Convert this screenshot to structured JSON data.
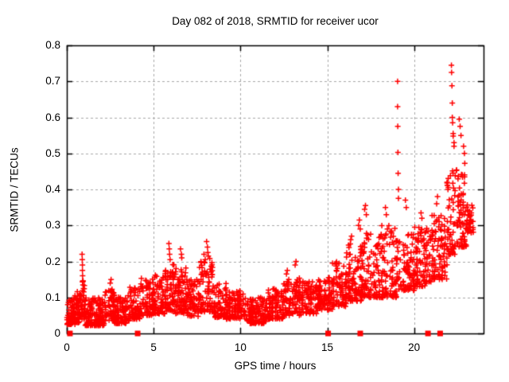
{
  "page": {
    "background": "#ffffff",
    "foreground": "#000000"
  },
  "chart_data": {
    "type": "scatter",
    "title": "Day 082 of 2018, SRMTID for receiver ucor",
    "xlabel": "GPS time / hours",
    "ylabel": "SRMTID / TECUs",
    "xlim": [
      0,
      24
    ],
    "ylim": [
      0,
      0.8
    ],
    "xticks": [
      0,
      5,
      10,
      15,
      20
    ],
    "yticks": [
      0,
      0.1,
      0.2,
      0.3,
      0.4,
      0.5,
      0.6,
      0.7,
      0.8
    ],
    "xtick_labels": [
      "0",
      "5",
      "10",
      "15",
      "20"
    ],
    "ytick_labels": [
      "0",
      "0.1",
      "0.2",
      "0.3",
      "0.4",
      "0.5",
      "0.6",
      "0.7",
      "0.8"
    ],
    "grid": {
      "show": true,
      "color": "#a8a8a8",
      "dash": [
        3,
        3
      ]
    },
    "border_color": "#000000",
    "legend": "none",
    "marker": {
      "glyph": "plus",
      "color": "#ff0000",
      "size": 7,
      "stroke": 1.5
    },
    "zero_marker": {
      "glyph": "square",
      "color": "#ff0000",
      "size": 7
    },
    "series": [
      {
        "name": "SRMTID",
        "seed": 20180082,
        "column_repeat_prob": 0.3,
        "density_power": 1.6,
        "profile": [
          [
            0.0,
            0.5,
            70,
            0.025,
            0.105
          ],
          [
            0.5,
            0.85,
            45,
            0.03,
            0.12
          ],
          [
            0.85,
            1.05,
            30,
            0.04,
            0.16
          ],
          [
            1.05,
            2.2,
            140,
            0.022,
            0.1
          ],
          [
            2.2,
            2.75,
            60,
            0.035,
            0.125
          ],
          [
            2.75,
            3.6,
            95,
            0.028,
            0.105
          ],
          [
            3.6,
            4.25,
            70,
            0.04,
            0.13
          ],
          [
            4.25,
            5.0,
            85,
            0.05,
            0.155
          ],
          [
            5.0,
            5.65,
            75,
            0.055,
            0.165
          ],
          [
            5.65,
            6.25,
            70,
            0.06,
            0.195
          ],
          [
            6.25,
            6.9,
            75,
            0.055,
            0.185
          ],
          [
            6.9,
            7.6,
            75,
            0.045,
            0.15
          ],
          [
            7.6,
            8.45,
            90,
            0.06,
            0.21
          ],
          [
            8.45,
            9.2,
            80,
            0.045,
            0.14
          ],
          [
            9.2,
            10.2,
            100,
            0.04,
            0.12
          ],
          [
            10.2,
            11.6,
            140,
            0.028,
            0.1
          ],
          [
            11.6,
            12.5,
            90,
            0.04,
            0.125
          ],
          [
            12.5,
            13.5,
            95,
            0.05,
            0.155
          ],
          [
            13.5,
            14.5,
            95,
            0.055,
            0.145
          ],
          [
            14.5,
            15.3,
            80,
            0.065,
            0.155
          ],
          [
            15.3,
            16.1,
            80,
            0.075,
            0.2
          ],
          [
            16.1,
            17.0,
            90,
            0.09,
            0.25
          ],
          [
            17.0,
            18.0,
            95,
            0.1,
            0.28
          ],
          [
            18.0,
            19.0,
            95,
            0.1,
            0.3
          ],
          [
            19.0,
            20.0,
            95,
            0.12,
            0.28
          ],
          [
            20.0,
            21.0,
            95,
            0.13,
            0.3
          ],
          [
            21.0,
            21.9,
            90,
            0.15,
            0.33
          ],
          [
            21.9,
            22.35,
            55,
            0.22,
            0.46
          ],
          [
            22.35,
            23.0,
            70,
            0.24,
            0.5
          ],
          [
            23.0,
            23.4,
            40,
            0.28,
            0.36
          ]
        ],
        "outliers": [
          [
            0.88,
            0.22
          ],
          [
            0.89,
            0.205
          ],
          [
            0.9,
            0.19
          ],
          [
            0.9,
            0.175
          ],
          [
            0.91,
            0.16
          ],
          [
            0.92,
            0.145
          ],
          [
            0.93,
            0.135
          ],
          [
            0.96,
            0.125
          ],
          [
            2.5,
            0.14
          ],
          [
            2.55,
            0.15
          ],
          [
            5.88,
            0.25
          ],
          [
            5.9,
            0.235
          ],
          [
            5.92,
            0.22
          ],
          [
            5.95,
            0.205
          ],
          [
            6.55,
            0.235
          ],
          [
            6.6,
            0.22
          ],
          [
            6.62,
            0.21
          ],
          [
            7.9,
            0.22
          ],
          [
            8.05,
            0.255
          ],
          [
            8.1,
            0.24
          ],
          [
            8.12,
            0.225
          ],
          [
            8.15,
            0.215
          ],
          [
            12.65,
            0.165
          ],
          [
            12.7,
            0.175
          ],
          [
            13.15,
            0.19
          ],
          [
            13.2,
            0.2
          ],
          [
            16.35,
            0.26
          ],
          [
            16.4,
            0.27
          ],
          [
            16.8,
            0.3
          ],
          [
            16.85,
            0.315
          ],
          [
            16.9,
            0.29
          ],
          [
            17.15,
            0.345
          ],
          [
            17.2,
            0.355
          ],
          [
            17.25,
            0.33
          ],
          [
            18.35,
            0.35
          ],
          [
            18.4,
            0.33
          ],
          [
            19.05,
            0.7
          ],
          [
            19.05,
            0.63
          ],
          [
            19.06,
            0.575
          ],
          [
            19.07,
            0.503
          ],
          [
            19.08,
            0.445
          ],
          [
            19.1,
            0.4
          ],
          [
            19.1,
            0.375
          ],
          [
            19.5,
            0.37
          ],
          [
            19.55,
            0.35
          ],
          [
            20.4,
            0.335
          ],
          [
            20.45,
            0.32
          ],
          [
            21.3,
            0.36
          ],
          [
            21.35,
            0.38
          ],
          [
            21.9,
            0.42
          ],
          [
            21.95,
            0.4
          ],
          [
            22.15,
            0.745
          ],
          [
            22.16,
            0.725
          ],
          [
            22.18,
            0.688
          ],
          [
            22.2,
            0.64
          ],
          [
            22.2,
            0.6
          ],
          [
            22.22,
            0.585
          ],
          [
            22.25,
            0.555
          ],
          [
            22.25,
            0.548
          ],
          [
            22.3,
            0.53
          ],
          [
            22.3,
            0.52
          ],
          [
            22.6,
            0.595
          ],
          [
            22.65,
            0.575
          ],
          [
            22.7,
            0.55
          ],
          [
            22.85,
            0.52
          ],
          [
            22.9,
            0.5
          ]
        ]
      },
      {
        "name": "zero-flags",
        "x": [
          0.18,
          4.08,
          15.05,
          16.9,
          20.8,
          21.5
        ],
        "y": 0
      }
    ]
  }
}
